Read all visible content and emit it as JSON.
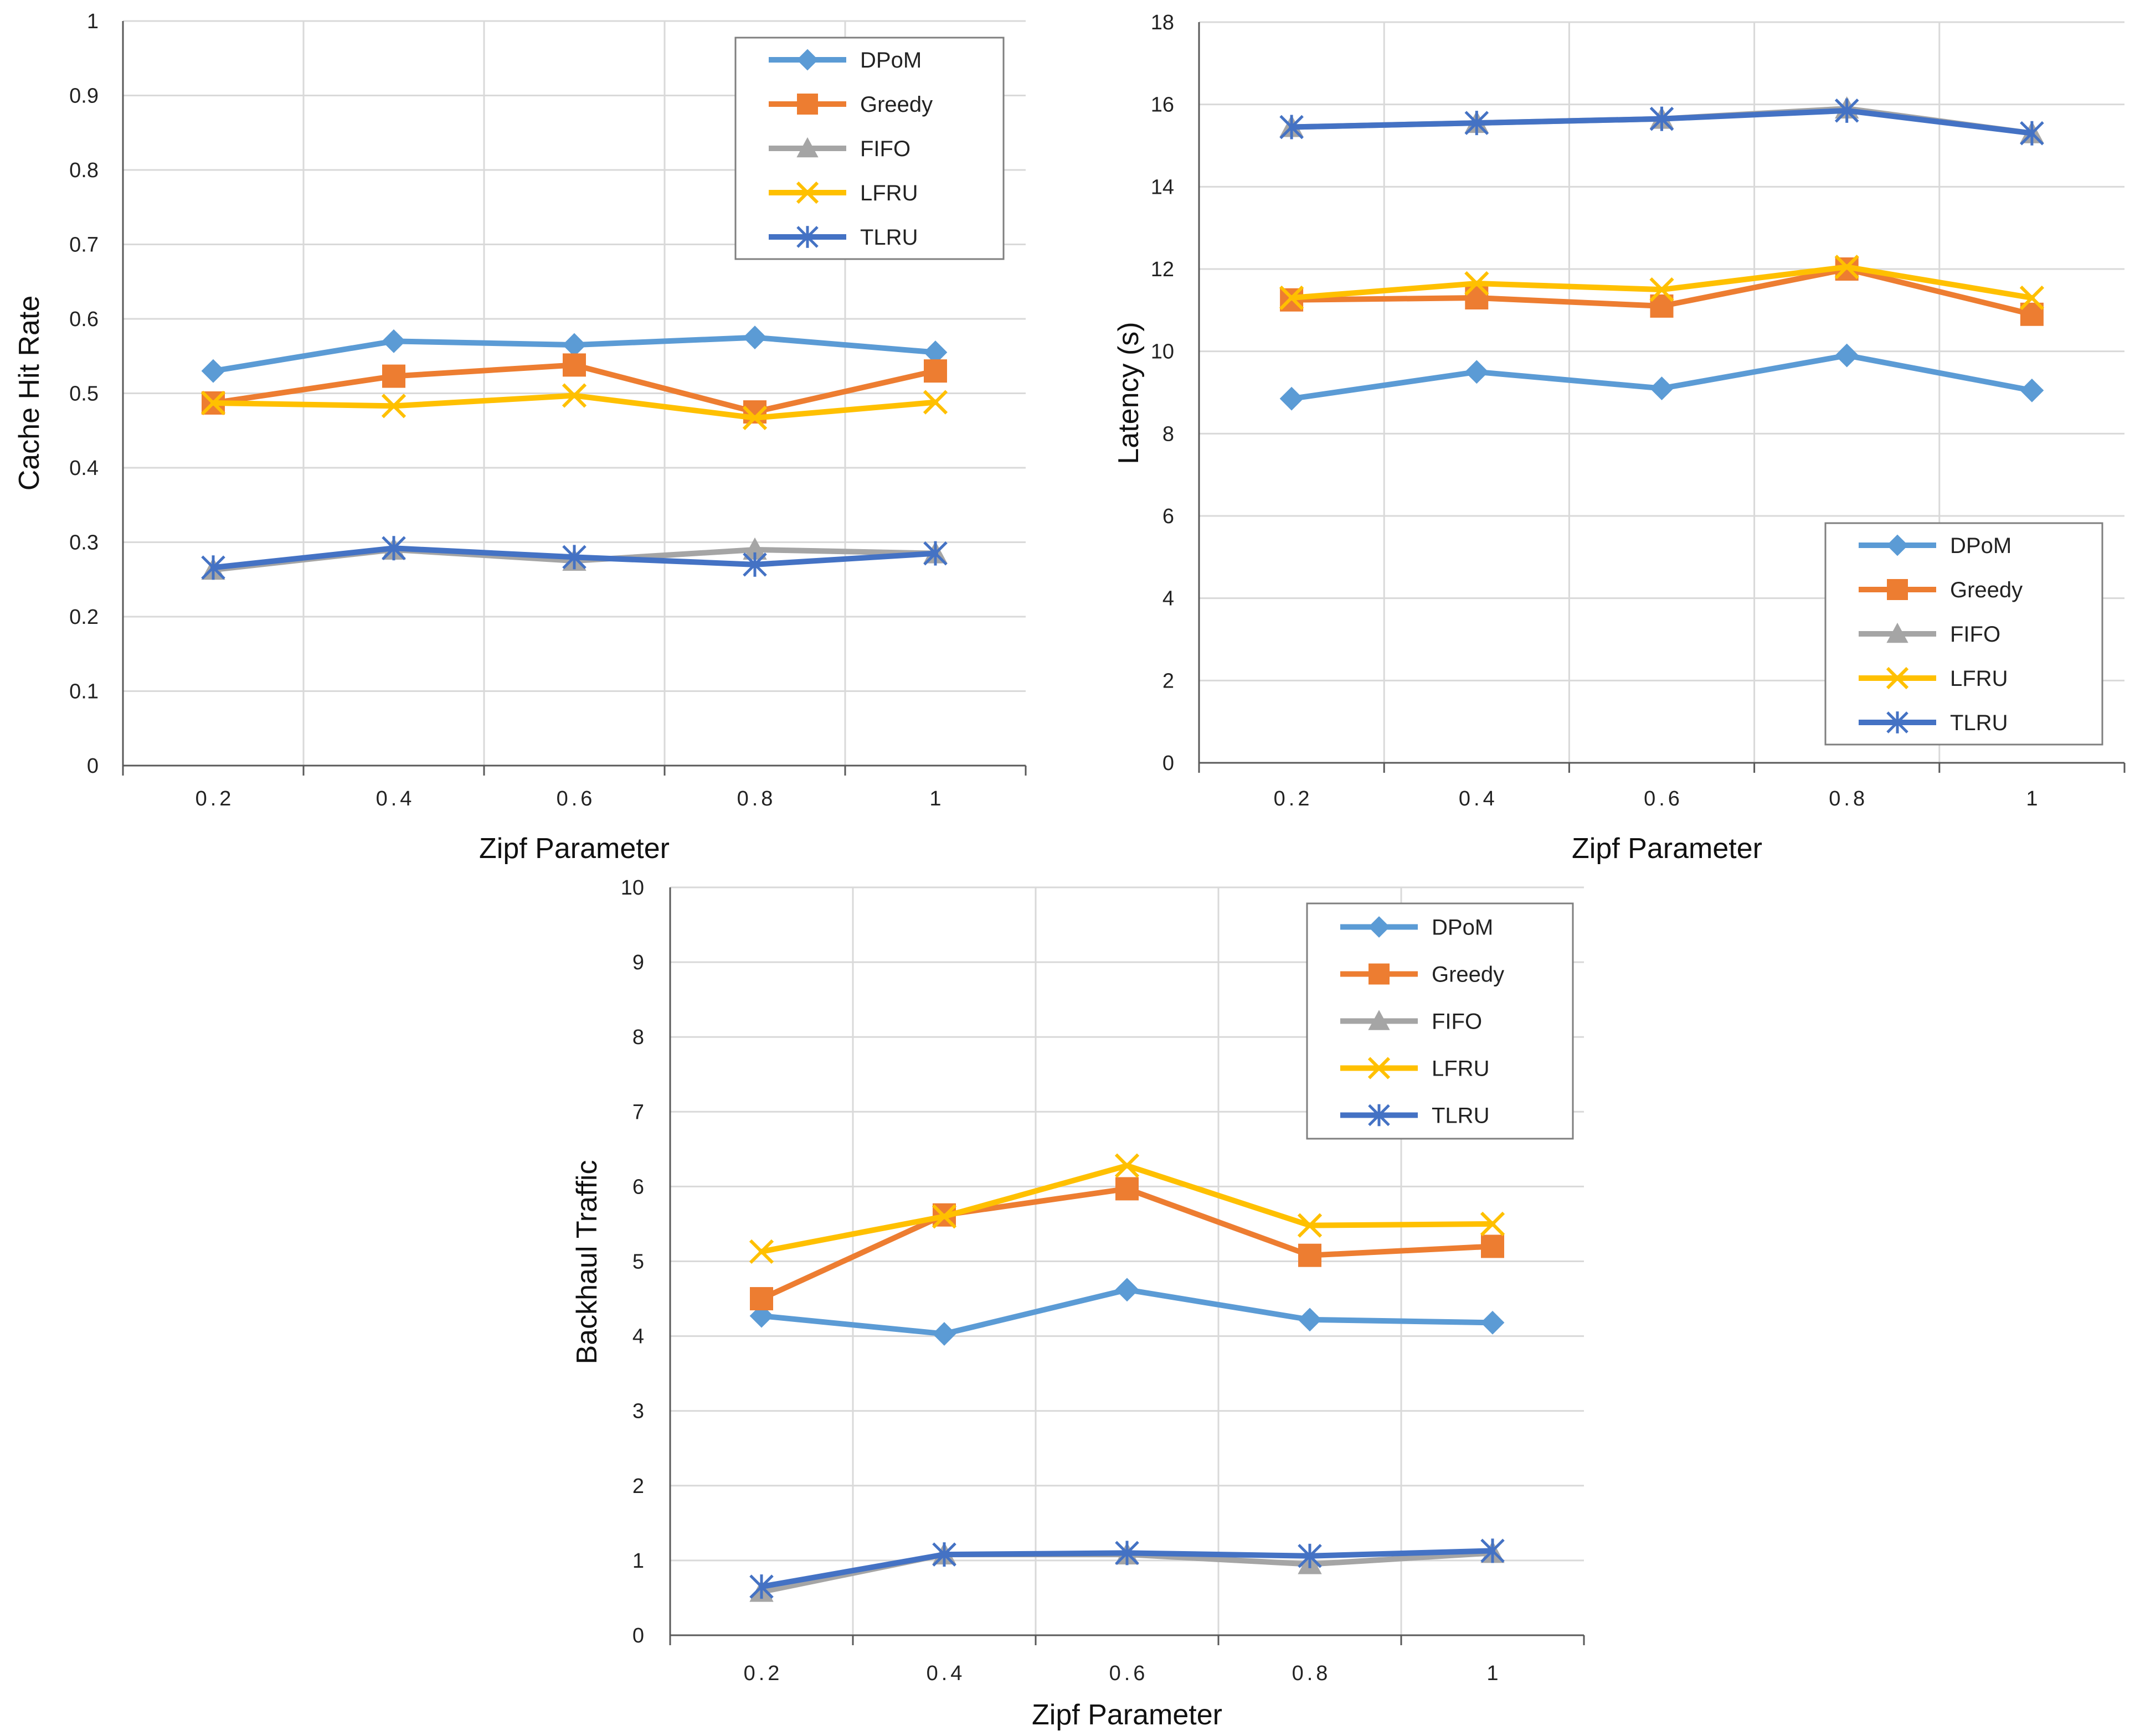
{
  "chart_data": [
    {
      "id": "hit",
      "type": "line",
      "title": "",
      "xlabel": "Zipf Parameter",
      "ylabel": "Cache Hit Rate",
      "categories": [
        "0.2",
        "0.4",
        "0.6",
        "0.8",
        "1"
      ],
      "ylim": [
        0,
        1
      ],
      "yticks": [
        "0",
        "0.1",
        "0.2",
        "0.3",
        "0.4",
        "0.5",
        "0.6",
        "0.7",
        "0.8",
        "0.9",
        "1"
      ],
      "legend_position": "top-right",
      "grid": true,
      "series": [
        {
          "name": "DPoM",
          "values": [
            0.53,
            0.57,
            0.565,
            0.575,
            0.555
          ]
        },
        {
          "name": "Greedy",
          "values": [
            0.487,
            0.523,
            0.538,
            0.475,
            0.53
          ]
        },
        {
          "name": "FIFO",
          "values": [
            0.263,
            0.29,
            0.275,
            0.29,
            0.285
          ]
        },
        {
          "name": "LFRU",
          "values": [
            0.487,
            0.483,
            0.497,
            0.467,
            0.488
          ]
        },
        {
          "name": "TLRU",
          "values": [
            0.266,
            0.292,
            0.28,
            0.27,
            0.285
          ]
        }
      ]
    },
    {
      "id": "lat",
      "type": "line",
      "title": "",
      "xlabel": "Zipf Parameter",
      "ylabel": "Latency (s)",
      "categories": [
        "0.2",
        "0.4",
        "0.6",
        "0.8",
        "1"
      ],
      "ylim": [
        0,
        18
      ],
      "yticks": [
        "0",
        "2",
        "4",
        "6",
        "8",
        "10",
        "12",
        "14",
        "16",
        "18"
      ],
      "legend_position": "bottom-right",
      "grid": true,
      "series": [
        {
          "name": "DPoM",
          "values": [
            8.85,
            9.5,
            9.1,
            9.9,
            9.05
          ]
        },
        {
          "name": "Greedy",
          "values": [
            11.25,
            11.3,
            11.1,
            12.0,
            10.9
          ]
        },
        {
          "name": "FIFO",
          "values": [
            15.45,
            15.55,
            15.65,
            15.9,
            15.3
          ]
        },
        {
          "name": "LFRU",
          "values": [
            11.3,
            11.65,
            11.5,
            12.05,
            11.3
          ]
        },
        {
          "name": "TLRU",
          "values": [
            15.45,
            15.55,
            15.65,
            15.85,
            15.3
          ]
        }
      ]
    },
    {
      "id": "bh",
      "type": "line",
      "title": "",
      "xlabel": "Zipf Parameter",
      "ylabel": "Backhaul Traffic",
      "categories": [
        "0.2",
        "0.4",
        "0.6",
        "0.8",
        "1"
      ],
      "ylim": [
        0,
        10
      ],
      "yticks": [
        "0",
        "1",
        "2",
        "3",
        "4",
        "5",
        "6",
        "7",
        "8",
        "9",
        "10"
      ],
      "legend_position": "top-right",
      "grid": true,
      "series": [
        {
          "name": "DPoM",
          "values": [
            4.27,
            4.03,
            4.62,
            4.22,
            4.18
          ]
        },
        {
          "name": "Greedy",
          "values": [
            4.5,
            5.62,
            5.97,
            5.08,
            5.2
          ]
        },
        {
          "name": "FIFO",
          "values": [
            0.58,
            1.08,
            1.08,
            0.95,
            1.1
          ]
        },
        {
          "name": "LFRU",
          "values": [
            5.13,
            5.6,
            6.28,
            5.48,
            5.5
          ]
        },
        {
          "name": "TLRU",
          "values": [
            0.65,
            1.08,
            1.1,
            1.06,
            1.13
          ]
        }
      ]
    }
  ],
  "colors": {
    "DPoM": "#5B9BD5",
    "Greedy": "#ED7D31",
    "FIFO": "#A5A5A5",
    "LFRU": "#FFC000",
    "TLRU": "#4472C4",
    "grid": "#d9d9d9",
    "axis": "#595959"
  },
  "markers": {
    "DPoM": "diamond",
    "Greedy": "square",
    "FIFO": "triangle",
    "LFRU": "x",
    "TLRU": "asterisk"
  }
}
